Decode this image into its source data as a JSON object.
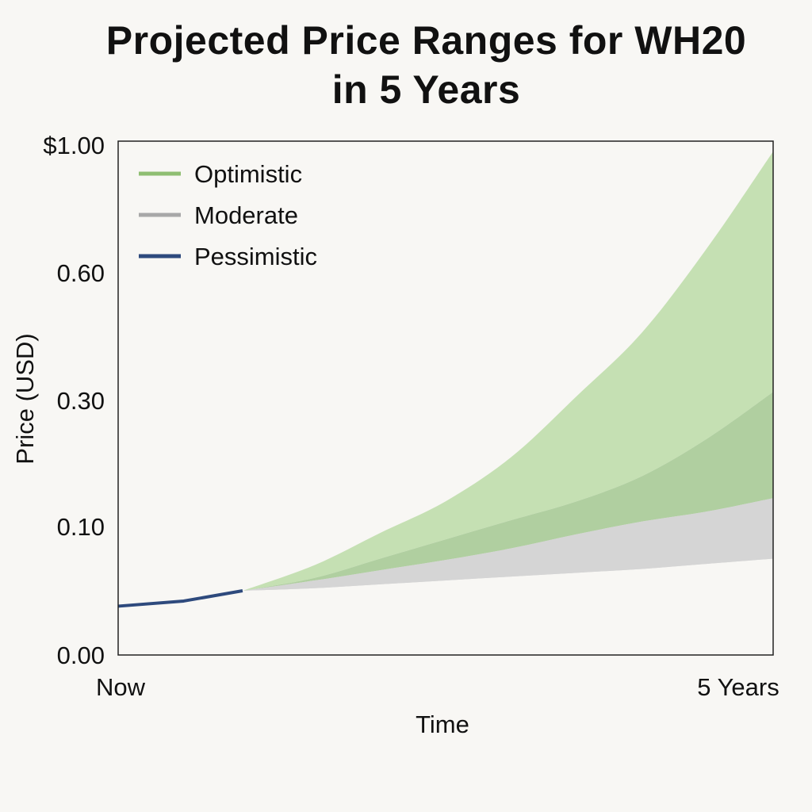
{
  "colors": {
    "background": "#f8f7f4",
    "optimistic": "#8fbe72",
    "optimistic_fill": "#c5e0b3",
    "moderate": "#a8a8a8",
    "moderate_fill": "#d5d5d5",
    "overlap_fill": "#b0cfa0",
    "pessimistic": "#2e4a7d"
  },
  "chart_data": {
    "type": "area",
    "title": "Projected Price Ranges for WH20 in 5 Years",
    "title_lines": [
      "Projected Price Ranges for WH20",
      "in 5 Years"
    ],
    "xlabel": "Time",
    "ylabel": "Price (USD)",
    "x_tick_labels": [
      "Now",
      "5 Years"
    ],
    "y_tick_labels": [
      "0.00",
      "0.10",
      "0.30",
      "0.60",
      "$1.00"
    ],
    "y_tick_values": [
      0.0,
      0.1,
      0.3,
      0.6,
      1.0
    ],
    "xlim": [
      0,
      5
    ],
    "legend": [
      "Optimistic",
      "Moderate",
      "Pessimistic"
    ],
    "legend_position": "top-left",
    "history": {
      "name": "Pessimistic",
      "x": [
        0,
        0.5,
        0.95
      ],
      "y": [
        0.038,
        0.042,
        0.05
      ]
    },
    "start": {
      "x": 0.95,
      "y": 0.05
    },
    "bands": [
      {
        "name": "Optimistic",
        "x": [
          0.95,
          1.5,
          2.0,
          2.5,
          3.0,
          3.5,
          4.0,
          4.5,
          5.0
        ],
        "lower": [
          0.05,
          0.06,
          0.075,
          0.09,
          0.11,
          0.14,
          0.18,
          0.24,
          0.32
        ],
        "upper": [
          0.05,
          0.07,
          0.095,
          0.14,
          0.21,
          0.31,
          0.46,
          0.68,
          0.98
        ]
      },
      {
        "name": "Moderate",
        "x": [
          0.95,
          1.5,
          2.0,
          2.5,
          3.0,
          3.5,
          4.0,
          4.5,
          5.0
        ],
        "lower": [
          0.05,
          0.052,
          0.055,
          0.058,
          0.061,
          0.064,
          0.067,
          0.071,
          0.075
        ],
        "upper": [
          0.05,
          0.058,
          0.066,
          0.074,
          0.083,
          0.094,
          0.108,
          0.124,
          0.145
        ]
      }
    ]
  }
}
